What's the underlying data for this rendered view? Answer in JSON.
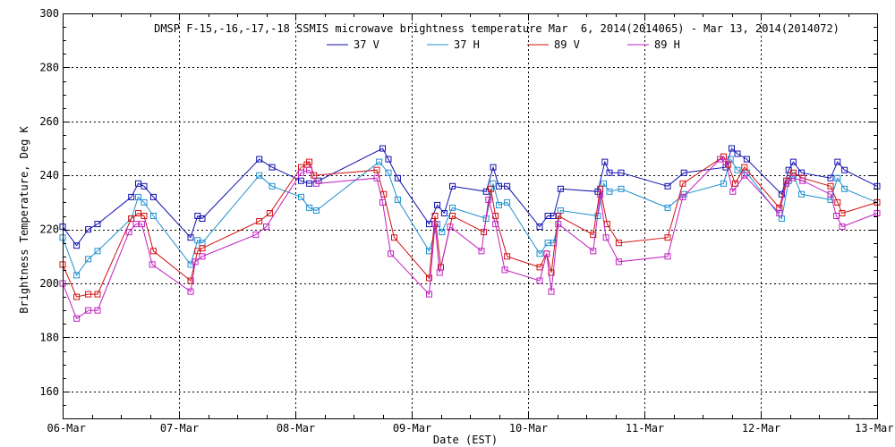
{
  "chart_data": {
    "type": "line",
    "title": "DMSP F-15,-16,-17,-18 SSMIS microwave brightness temperature Mar  6, 2014(2014065) - Mar 13, 2014(2014072)",
    "xlabel": "Date (EST)",
    "ylabel": "Brightness Temperature, Deg K",
    "x_unit": "days since 06-Mar-2014 00:00 EST",
    "xlim": [
      0,
      7
    ],
    "ylim": [
      150,
      300
    ],
    "x_ticks": [
      {
        "x": 0,
        "label": "06-Mar"
      },
      {
        "x": 1,
        "label": "07-Mar"
      },
      {
        "x": 2,
        "label": "08-Mar"
      },
      {
        "x": 3,
        "label": "09-Mar"
      },
      {
        "x": 4,
        "label": "10-Mar"
      },
      {
        "x": 5,
        "label": "11-Mar"
      },
      {
        "x": 6,
        "label": "12-Mar"
      },
      {
        "x": 7,
        "label": "13-Mar"
      }
    ],
    "y_ticks": [
      160,
      180,
      200,
      220,
      240,
      260,
      280,
      300
    ],
    "grid": true,
    "legend_position": "top-center",
    "series": [
      {
        "name": "37 V",
        "color": "#1010b0",
        "points": [
          [
            0.0,
            221
          ],
          [
            0.12,
            214
          ],
          [
            0.22,
            220
          ],
          [
            0.3,
            222
          ],
          [
            0.59,
            232
          ],
          [
            0.65,
            237
          ],
          [
            0.7,
            236
          ],
          [
            0.78,
            232
          ],
          [
            1.1,
            217
          ],
          [
            1.16,
            225
          ],
          [
            1.2,
            224
          ],
          [
            1.69,
            246
          ],
          [
            1.8,
            243
          ],
          [
            2.05,
            238
          ],
          [
            2.12,
            237
          ],
          [
            2.2,
            238
          ],
          [
            2.75,
            250
          ],
          [
            2.8,
            246
          ],
          [
            2.88,
            239
          ],
          [
            3.15,
            222
          ],
          [
            3.22,
            229
          ],
          [
            3.28,
            226
          ],
          [
            3.35,
            236
          ],
          [
            3.64,
            234
          ],
          [
            3.7,
            243
          ],
          [
            3.75,
            236
          ],
          [
            3.82,
            236
          ],
          [
            4.1,
            221
          ],
          [
            4.17,
            225
          ],
          [
            4.22,
            225
          ],
          [
            4.28,
            235
          ],
          [
            4.6,
            234
          ],
          [
            4.66,
            245
          ],
          [
            4.7,
            241
          ],
          [
            4.8,
            241
          ],
          [
            5.2,
            236
          ],
          [
            5.34,
            241
          ],
          [
            5.7,
            243
          ],
          [
            5.75,
            250
          ],
          [
            5.8,
            248
          ],
          [
            5.88,
            246
          ],
          [
            6.18,
            233
          ],
          [
            6.24,
            242
          ],
          [
            6.28,
            245
          ],
          [
            6.35,
            241
          ],
          [
            6.6,
            239
          ],
          [
            6.66,
            245
          ],
          [
            6.72,
            242
          ],
          [
            7.0,
            236
          ]
        ]
      },
      {
        "name": "37 H",
        "color": "#2090d0",
        "points": [
          [
            0.0,
            217
          ],
          [
            0.12,
            203
          ],
          [
            0.22,
            209
          ],
          [
            0.3,
            212
          ],
          [
            0.59,
            224
          ],
          [
            0.65,
            232
          ],
          [
            0.7,
            230
          ],
          [
            0.78,
            225
          ],
          [
            1.1,
            207
          ],
          [
            1.16,
            216
          ],
          [
            1.2,
            215
          ],
          [
            1.69,
            240
          ],
          [
            1.8,
            236
          ],
          [
            2.05,
            232
          ],
          [
            2.12,
            228
          ],
          [
            2.18,
            227
          ],
          [
            2.72,
            245
          ],
          [
            2.8,
            241
          ],
          [
            2.88,
            231
          ],
          [
            3.15,
            212
          ],
          [
            3.22,
            222
          ],
          [
            3.26,
            219
          ],
          [
            3.35,
            228
          ],
          [
            3.64,
            224
          ],
          [
            3.7,
            237
          ],
          [
            3.75,
            229
          ],
          [
            3.82,
            230
          ],
          [
            4.1,
            211
          ],
          [
            4.17,
            215
          ],
          [
            4.22,
            215
          ],
          [
            4.28,
            227
          ],
          [
            4.6,
            225
          ],
          [
            4.65,
            237
          ],
          [
            4.7,
            234
          ],
          [
            4.8,
            235
          ],
          [
            5.2,
            228
          ],
          [
            5.34,
            233
          ],
          [
            5.68,
            237
          ],
          [
            5.74,
            246
          ],
          [
            5.8,
            242
          ],
          [
            5.88,
            241
          ],
          [
            6.18,
            224
          ],
          [
            6.24,
            238
          ],
          [
            6.28,
            240
          ],
          [
            6.35,
            233
          ],
          [
            6.6,
            231
          ],
          [
            6.66,
            239
          ],
          [
            6.72,
            235
          ],
          [
            7.0,
            230
          ]
        ]
      },
      {
        "name": "89 V",
        "color": "#d01010",
        "points": [
          [
            0.0,
            207
          ],
          [
            0.12,
            195
          ],
          [
            0.22,
            196
          ],
          [
            0.3,
            196
          ],
          [
            0.59,
            224
          ],
          [
            0.65,
            226
          ],
          [
            0.7,
            225
          ],
          [
            0.78,
            212
          ],
          [
            1.1,
            201
          ],
          [
            1.16,
            212
          ],
          [
            1.2,
            213
          ],
          [
            1.69,
            223
          ],
          [
            1.78,
            226
          ],
          [
            2.05,
            243
          ],
          [
            2.1,
            244
          ],
          [
            2.12,
            245
          ],
          [
            2.16,
            240
          ],
          [
            2.7,
            242
          ],
          [
            2.76,
            233
          ],
          [
            2.85,
            217
          ],
          [
            3.15,
            202
          ],
          [
            3.2,
            225
          ],
          [
            3.25,
            206
          ],
          [
            3.35,
            225
          ],
          [
            3.62,
            219
          ],
          [
            3.68,
            235
          ],
          [
            3.72,
            225
          ],
          [
            3.82,
            210
          ],
          [
            4.1,
            206
          ],
          [
            4.16,
            211
          ],
          [
            4.2,
            204
          ],
          [
            4.26,
            225
          ],
          [
            4.56,
            218
          ],
          [
            4.62,
            235
          ],
          [
            4.68,
            222
          ],
          [
            4.78,
            215
          ],
          [
            5.2,
            217
          ],
          [
            5.33,
            237
          ],
          [
            5.68,
            247
          ],
          [
            5.72,
            244
          ],
          [
            5.78,
            237
          ],
          [
            5.86,
            243
          ],
          [
            6.16,
            228
          ],
          [
            6.22,
            238
          ],
          [
            6.28,
            241
          ],
          [
            6.36,
            239
          ],
          [
            6.6,
            236
          ],
          [
            6.66,
            230
          ],
          [
            6.7,
            226
          ],
          [
            7.0,
            230
          ]
        ]
      },
      {
        "name": "89 H",
        "color": "#c020c0",
        "points": [
          [
            0.0,
            200
          ],
          [
            0.12,
            187
          ],
          [
            0.22,
            190
          ],
          [
            0.3,
            190
          ],
          [
            0.57,
            219
          ],
          [
            0.63,
            222
          ],
          [
            0.68,
            222
          ],
          [
            0.77,
            207
          ],
          [
            1.1,
            197
          ],
          [
            1.14,
            208
          ],
          [
            1.2,
            210
          ],
          [
            1.66,
            218
          ],
          [
            1.75,
            221
          ],
          [
            2.05,
            241
          ],
          [
            2.12,
            242
          ],
          [
            2.18,
            237
          ],
          [
            2.7,
            239
          ],
          [
            2.75,
            230
          ],
          [
            2.82,
            211
          ],
          [
            3.15,
            196
          ],
          [
            3.2,
            222
          ],
          [
            3.24,
            204
          ],
          [
            3.33,
            221
          ],
          [
            3.6,
            212
          ],
          [
            3.66,
            231
          ],
          [
            3.72,
            222
          ],
          [
            3.8,
            205
          ],
          [
            4.1,
            201
          ],
          [
            4.16,
            211
          ],
          [
            4.2,
            197
          ],
          [
            4.26,
            222
          ],
          [
            4.56,
            212
          ],
          [
            4.62,
            233
          ],
          [
            4.67,
            217
          ],
          [
            4.78,
            208
          ],
          [
            5.2,
            210
          ],
          [
            5.33,
            232
          ],
          [
            5.65,
            246
          ],
          [
            5.7,
            245
          ],
          [
            5.76,
            234
          ],
          [
            5.86,
            240
          ],
          [
            6.16,
            226
          ],
          [
            6.22,
            237
          ],
          [
            6.27,
            239
          ],
          [
            6.36,
            238
          ],
          [
            6.6,
            233
          ],
          [
            6.65,
            225
          ],
          [
            6.7,
            221
          ],
          [
            7.0,
            226
          ]
        ]
      }
    ]
  }
}
